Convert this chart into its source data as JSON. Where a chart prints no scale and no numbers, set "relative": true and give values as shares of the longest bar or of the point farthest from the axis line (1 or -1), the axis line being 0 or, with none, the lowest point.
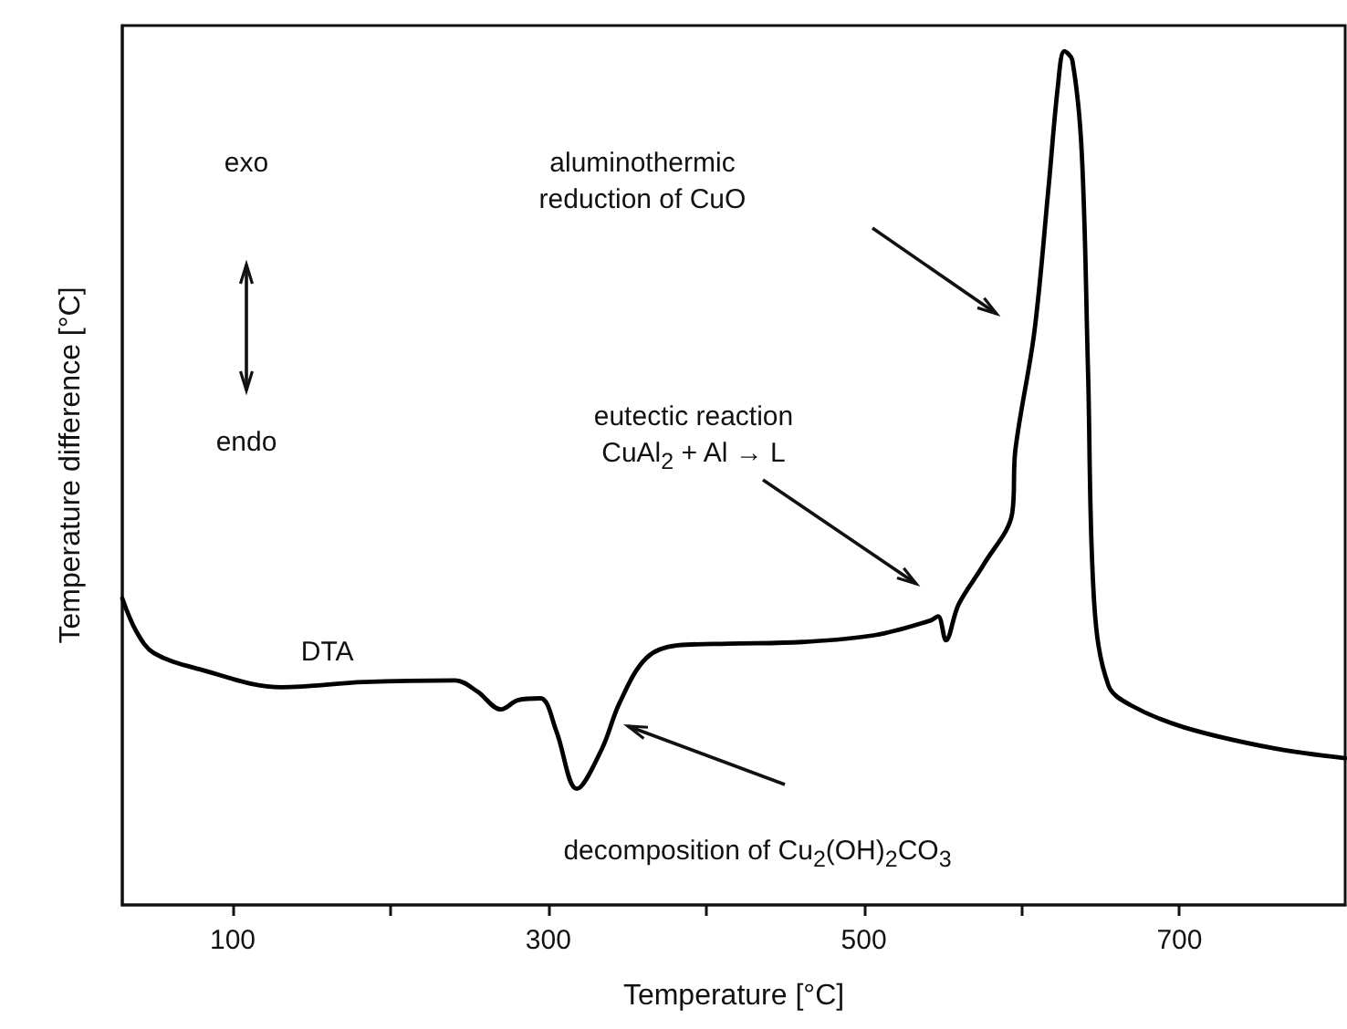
{
  "chart_data": {
    "type": "line",
    "relative": true,
    "xlabel": "Temperature [°C]",
    "ylabel": "Temperature difference [°C]",
    "xlim": [
      30,
      805
    ],
    "xticks": [
      100,
      {
        "value": 200,
        "label": null
      },
      300,
      {
        "value": 400,
        "label": null
      },
      500,
      {
        "value": 600,
        "label": null
      },
      700
    ],
    "x": [
      30,
      39,
      50,
      79,
      131,
      183,
      241,
      255,
      270,
      281,
      295,
      305,
      318,
      334,
      345,
      362,
      382,
      414,
      461,
      507,
      542,
      547,
      552,
      560,
      576,
      594,
      596,
      608,
      617,
      623,
      627,
      632,
      638,
      642,
      646,
      655,
      669,
      703,
      761,
      805
    ],
    "series": [
      {
        "name": "DTA",
        "color": "#000000",
        "values": [
          0.359,
          0.32,
          0.295,
          0.276,
          0.255,
          0.261,
          0.263,
          0.25,
          0.229,
          0.24,
          0.242,
          0.204,
          0.136,
          0.183,
          0.236,
          0.289,
          0.304,
          0.306,
          0.308,
          0.316,
          0.333,
          0.338,
          0.31,
          0.352,
          0.399,
          0.459,
          0.533,
          0.671,
          0.84,
          0.96,
          1.0,
          0.99,
          0.883,
          0.628,
          0.352,
          0.257,
          0.234,
          0.208,
          0.183,
          0.172
        ]
      }
    ],
    "marker": "none",
    "line_style": "solid",
    "grid": false,
    "legend": false,
    "annotations": [
      "aluminothermic reduction of CuO",
      "eutectic reaction CuAl$_{2}$ + Al → L",
      "decomposition of Cu$_{2}$(OH)$_{2}$CO$_{3}$",
      "exo",
      "endo"
    ]
  }
}
